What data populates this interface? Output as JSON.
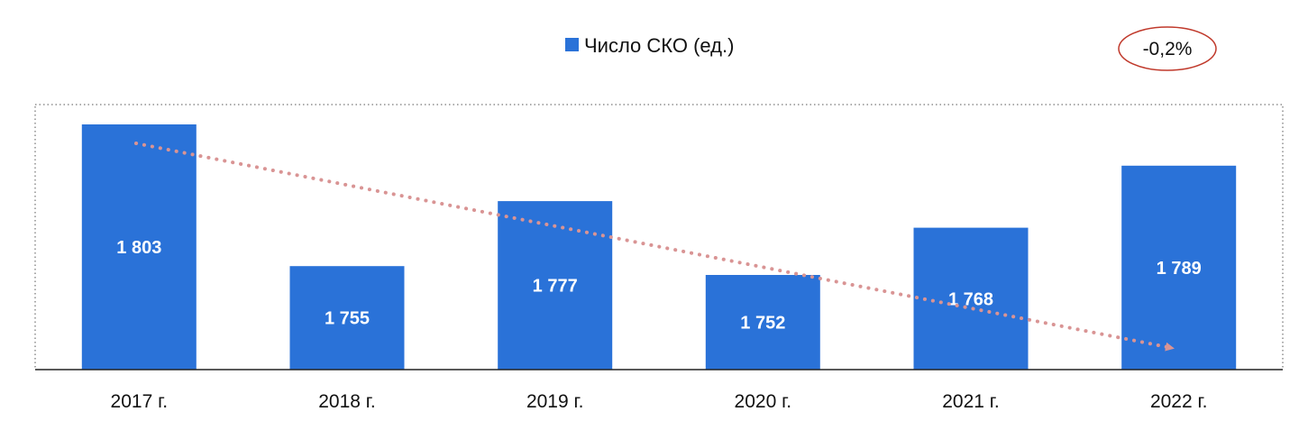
{
  "chart_data": {
    "type": "bar",
    "categories": [
      "2017 г.",
      "2018 г.",
      "2019 г.",
      "2020 г.",
      "2021 г.",
      "2022 г."
    ],
    "series": [
      {
        "name": "Число СКО (ед.)",
        "values": [
          1803,
          1755,
          1777,
          1752,
          1768,
          1789
        ],
        "value_labels": [
          "1 803",
          "1 755",
          "1 777",
          "1 752",
          "1 768",
          "1 789"
        ]
      }
    ],
    "legend": "top-center",
    "trend_callout": "-0,2%",
    "trend_line": "dotted arrow, decreasing",
    "grid": false
  },
  "colors": {
    "bar": "#2a72d8",
    "trend": "#d99494",
    "callout_border": "#c0392b",
    "axis": "#222222"
  }
}
